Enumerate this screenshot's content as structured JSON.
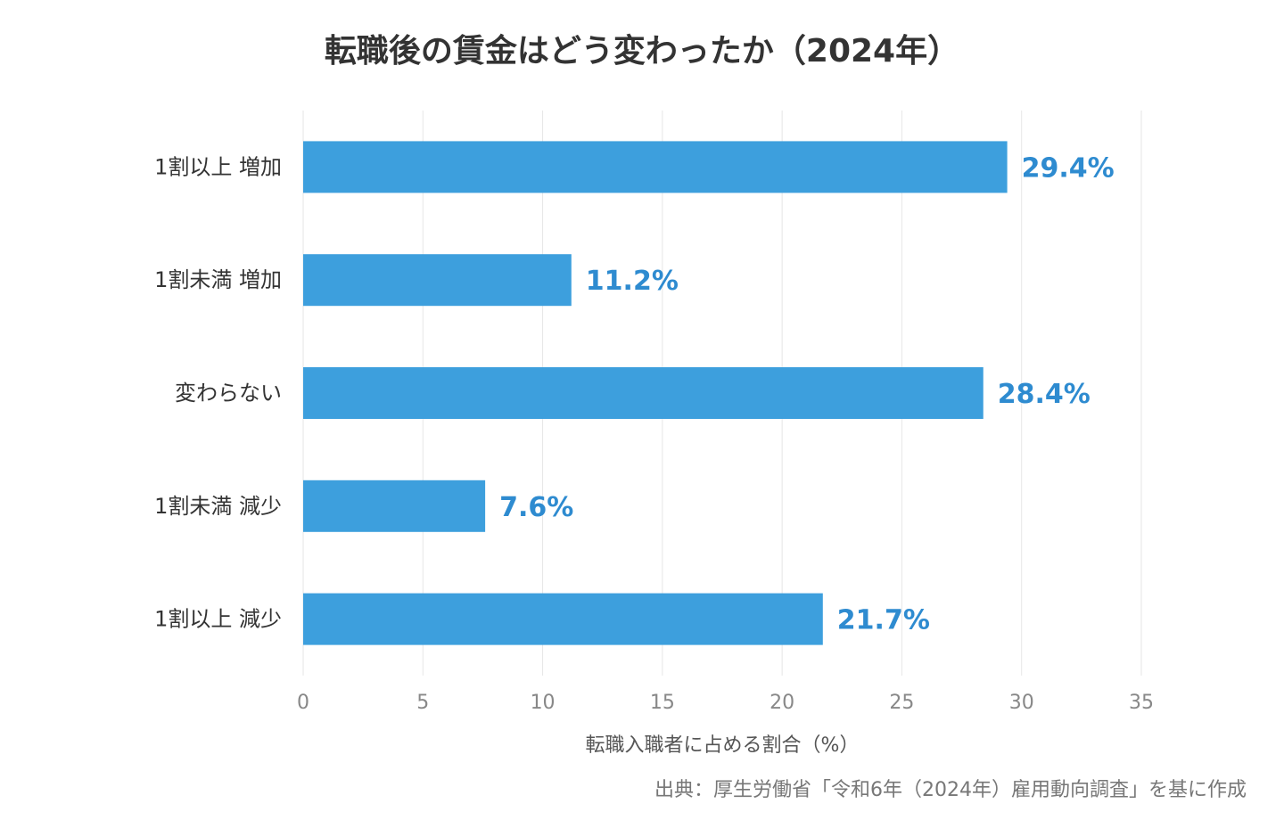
{
  "chart_data": {
    "type": "bar",
    "orientation": "horizontal",
    "title": "転職後の賃金はどう変わったか（2024年）",
    "categories": [
      "1割以上 増加",
      "1割未満 増加",
      "変わらない",
      "1割未満 減少",
      "1割以上 減少"
    ],
    "values": [
      29.4,
      11.2,
      28.4,
      7.6,
      21.7
    ],
    "data_labels": [
      "29.4%",
      "11.2%",
      "28.4%",
      "7.6%",
      "21.7%"
    ],
    "xlabel": "転職入職者に占める割合（%）",
    "ylabel": "",
    "xlim": [
      0,
      35
    ],
    "xticks": [
      0,
      5,
      10,
      15,
      20,
      25,
      30,
      35
    ],
    "grid": true,
    "legend": "none",
    "colors": {
      "bar": "#3d9fdd",
      "label": "#2e8bd0"
    }
  },
  "source": "出典：厚生労働省「令和6年（2024年）雇用動向調査」を基に作成"
}
